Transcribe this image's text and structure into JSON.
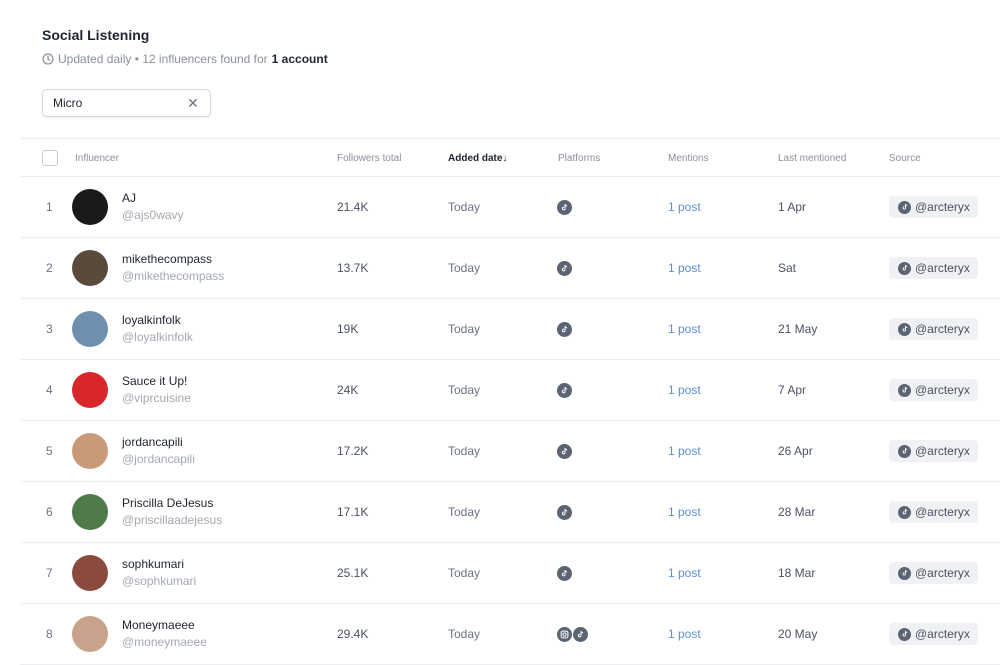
{
  "header": {
    "title": "Social Listening",
    "subtitle_prefix": "Updated daily • 12 influencers found for",
    "subtitle_bold": "1 account"
  },
  "filter": {
    "value": "Micro"
  },
  "table": {
    "columns": {
      "influencer": "Influencer",
      "followers": "Followers total",
      "added": "Added date↓",
      "platforms": "Platforms",
      "mentions": "Mentions",
      "last": "Last mentioned",
      "source": "Source"
    },
    "rows": [
      {
        "num": "1",
        "name": "AJ",
        "handle": "@ajs0wavy",
        "followers": "21.4K",
        "added": "Today",
        "platforms": [
          "tiktok-icon"
        ],
        "mentions": "1 post",
        "last": "1 Apr",
        "source": "@arcteryx",
        "avatar_color": "#1a1a1a"
      },
      {
        "num": "2",
        "name": "mikethecompass",
        "handle": "@mikethecompass",
        "followers": "13.7K",
        "added": "Today",
        "platforms": [
          "tiktok-icon"
        ],
        "mentions": "1 post",
        "last": "Sat",
        "source": "@arcteryx",
        "avatar_color": "#5a4a3c"
      },
      {
        "num": "3",
        "name": "loyalkinfolk",
        "handle": "@loyalkinfolk",
        "followers": "19K",
        "added": "Today",
        "platforms": [
          "tiktok-icon"
        ],
        "mentions": "1 post",
        "last": "21 May",
        "source": "@arcteryx",
        "avatar_color": "#6f8fae"
      },
      {
        "num": "4",
        "name": "Sauce it Up!",
        "handle": "@viprcuisine",
        "followers": "24K",
        "added": "Today",
        "platforms": [
          "tiktok-icon"
        ],
        "mentions": "1 post",
        "last": "7 Apr",
        "source": "@arcteryx",
        "avatar_color": "#d9262b"
      },
      {
        "num": "5",
        "name": "jordancapili",
        "handle": "@jordancapili",
        "followers": "17.2K",
        "added": "Today",
        "platforms": [
          "tiktok-icon"
        ],
        "mentions": "1 post",
        "last": "26 Apr",
        "source": "@arcteryx",
        "avatar_color": "#c89a78"
      },
      {
        "num": "6",
        "name": "Priscilla DeJesus",
        "handle": "@priscillaadejesus",
        "followers": "17.1K",
        "added": "Today",
        "platforms": [
          "tiktok-icon"
        ],
        "mentions": "1 post",
        "last": "28 Mar",
        "source": "@arcteryx",
        "avatar_color": "#4f7a4a"
      },
      {
        "num": "7",
        "name": "sophkumari",
        "handle": "@sophkumari",
        "followers": "25.1K",
        "added": "Today",
        "platforms": [
          "tiktok-icon"
        ],
        "mentions": "1 post",
        "last": "18 Mar",
        "source": "@arcteryx",
        "avatar_color": "#8a4b3e"
      },
      {
        "num": "8",
        "name": "Moneymaeee",
        "handle": "@moneymaeee",
        "followers": "29.4K",
        "added": "Today",
        "platforms": [
          "instagram-icon",
          "tiktok-icon"
        ],
        "mentions": "1 post",
        "last": "20 May",
        "source": "@arcteryx",
        "avatar_color": "#c9a28e"
      }
    ]
  },
  "colors": {
    "accent_link": "#5b8fd9",
    "icon_gray": "#5a6473"
  }
}
